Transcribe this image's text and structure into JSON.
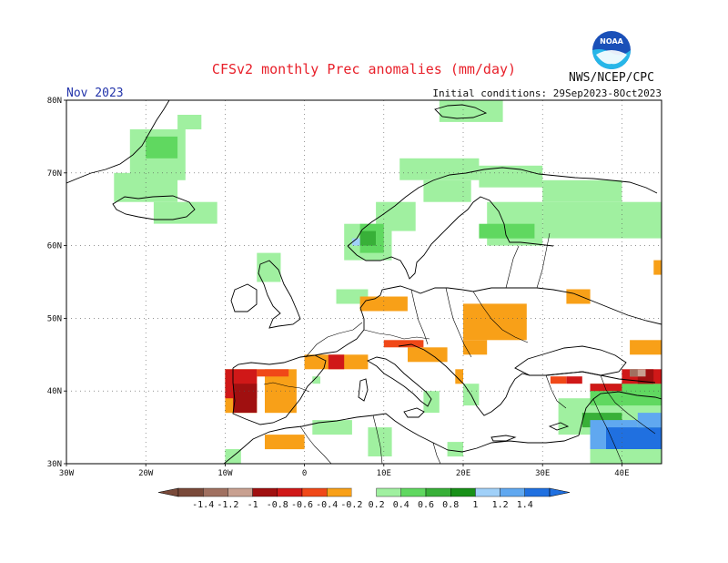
{
  "header": {
    "title": "CFSv2 monthly Prec anomalies (mm/day)",
    "agency": "NWS/NCEP/CPC",
    "logo_text": "NOAA",
    "month": "Nov 2023",
    "initial_conditions": "Initial conditions: 29Sep2023-8Oct2023"
  },
  "axes": {
    "lon_labels": [
      "30W",
      "20W",
      "10W",
      "0",
      "10E",
      "20E",
      "30E",
      "40E"
    ],
    "lat_labels": [
      "80N",
      "70N",
      "60N",
      "50N",
      "40N",
      "30N"
    ],
    "lon_range": [
      -30,
      45
    ],
    "lat_range": [
      30,
      80
    ],
    "grid": "dotted"
  },
  "colorbar": {
    "tick_labels": [
      "-1.4",
      "-1.2",
      "-1",
      "-0.8",
      "-0.6",
      "-0.4",
      "-0.2",
      "0.2",
      "0.4",
      "0.6",
      "0.8",
      "1",
      "1.2",
      "1.4"
    ],
    "colors": [
      "#7a4a3a",
      "#a07060",
      "#c8a090",
      "#a01010",
      "#d01818",
      "#f04818",
      "#f8a018",
      "#ffffff",
      "#a0f0a0",
      "#60d860",
      "#38b038",
      "#189018",
      "#a0d0f8",
      "#60a8f0",
      "#2070e0"
    ],
    "extend": "both"
  },
  "colors": {
    "title": "#e8202a",
    "month": "#2233aa",
    "coast": "#000000",
    "logo_blue": "#1a50b8"
  },
  "chart_data": {
    "type": "heatmap",
    "title": "CFSv2 monthly Prec anomalies (mm/day)",
    "units": "mm/day",
    "cell_size_deg": 1,
    "xlabel": "",
    "ylabel": "",
    "xlim": [
      -30,
      45
    ],
    "ylim": [
      30,
      80
    ],
    "regions": [
      {
        "anomaly": 0.3,
        "lon": [
          -22,
          -15
        ],
        "lat": [
          69,
          76
        ]
      },
      {
        "anomaly": 0.3,
        "lon": [
          -24,
          -16
        ],
        "lat": [
          66,
          70
        ]
      },
      {
        "anomaly": 0.3,
        "lon": [
          -16,
          -13
        ],
        "lat": [
          76,
          78
        ]
      },
      {
        "anomaly": 0.3,
        "lon": [
          -19,
          -11
        ],
        "lat": [
          63,
          66
        ]
      },
      {
        "anomaly": 0.3,
        "lon": [
          17,
          25
        ],
        "lat": [
          77,
          80
        ]
      },
      {
        "anomaly": 0.3,
        "lon": [
          12,
          22
        ],
        "lat": [
          69,
          72
        ]
      },
      {
        "anomaly": 0.3,
        "lon": [
          22,
          30
        ],
        "lat": [
          68,
          71
        ]
      },
      {
        "anomaly": 0.3,
        "lon": [
          15,
          21
        ],
        "lat": [
          66,
          69
        ]
      },
      {
        "anomaly": 0.3,
        "lon": [
          9,
          14
        ],
        "lat": [
          62,
          66
        ]
      },
      {
        "anomaly": 0.3,
        "lon": [
          23,
          30
        ],
        "lat": [
          60,
          66
        ]
      },
      {
        "anomaly": 0.3,
        "lon": [
          30,
          45
        ],
        "lat": [
          61,
          66
        ]
      },
      {
        "anomaly": 0.3,
        "lon": [
          30,
          40
        ],
        "lat": [
          66,
          69
        ]
      },
      {
        "anomaly": 0.3,
        "lon": [
          5,
          11
        ],
        "lat": [
          58,
          63
        ]
      },
      {
        "anomaly": 0.3,
        "lon": [
          -6,
          -3
        ],
        "lat": [
          55,
          59
        ]
      },
      {
        "anomaly": 0.3,
        "lon": [
          4,
          8
        ],
        "lat": [
          52,
          54
        ]
      },
      {
        "anomaly": 0.3,
        "lon": [
          8,
          11
        ],
        "lat": [
          31,
          35
        ]
      },
      {
        "anomaly": 0.3,
        "lon": [
          1,
          6
        ],
        "lat": [
          34,
          36
        ]
      },
      {
        "anomaly": 0.3,
        "lon": [
          15,
          17
        ],
        "lat": [
          37,
          40
        ]
      },
      {
        "anomaly": 0.3,
        "lon": [
          20,
          22
        ],
        "lat": [
          38,
          41
        ]
      },
      {
        "anomaly": 0.3,
        "lon": [
          18,
          20
        ],
        "lat": [
          31,
          33
        ]
      },
      {
        "anomaly": 0.3,
        "lon": [
          32,
          45
        ],
        "lat": [
          34,
          39
        ]
      },
      {
        "anomaly": 0.3,
        "lon": [
          36,
          45
        ],
        "lat": [
          30,
          34
        ]
      },
      {
        "anomaly": 0.3,
        "lon": [
          -10,
          -8
        ],
        "lat": [
          30,
          32
        ]
      },
      {
        "anomaly": 0.3,
        "lon": [
          1,
          2
        ],
        "lat": [
          41,
          42
        ]
      },
      {
        "anomaly": 0.5,
        "lon": [
          36,
          45
        ],
        "lat": [
          38,
          41
        ]
      },
      {
        "anomaly": 0.5,
        "lon": [
          7,
          10
        ],
        "lat": [
          59,
          63
        ]
      },
      {
        "anomaly": 0.5,
        "lon": [
          22,
          29
        ],
        "lat": [
          61,
          63
        ]
      },
      {
        "anomaly": 0.5,
        "lon": [
          -20,
          -16
        ],
        "lat": [
          72,
          75
        ]
      },
      {
        "anomaly": 0.7,
        "lon": [
          7,
          9
        ],
        "lat": [
          60,
          62
        ]
      },
      {
        "anomaly": 0.7,
        "lon": [
          35,
          40
        ],
        "lat": [
          35,
          37
        ]
      },
      {
        "anomaly": 1.1,
        "lon": [
          6,
          7
        ],
        "lat": [
          60,
          61
        ]
      },
      {
        "anomaly": 1.3,
        "lon": [
          36,
          42
        ],
        "lat": [
          32,
          36
        ]
      },
      {
        "anomaly": 1.5,
        "lon": [
          38,
          45
        ],
        "lat": [
          32,
          35
        ]
      },
      {
        "anomaly": 1.3,
        "lon": [
          42,
          45
        ],
        "lat": [
          35,
          37
        ]
      },
      {
        "anomaly": -0.3,
        "lon": [
          -5,
          -1
        ],
        "lat": [
          37,
          43
        ]
      },
      {
        "anomaly": -0.3,
        "lon": [
          -10,
          -6
        ],
        "lat": [
          37,
          43
        ]
      },
      {
        "anomaly": -0.3,
        "lon": [
          -5,
          0
        ],
        "lat": [
          32,
          34
        ]
      },
      {
        "anomaly": -0.3,
        "lon": [
          0,
          8
        ],
        "lat": [
          43,
          45
        ]
      },
      {
        "anomaly": -0.3,
        "lon": [
          7,
          13
        ],
        "lat": [
          51,
          53
        ]
      },
      {
        "anomaly": -0.3,
        "lon": [
          20,
          28
        ],
        "lat": [
          47,
          52
        ]
      },
      {
        "anomaly": -0.3,
        "lon": [
          20,
          23
        ],
        "lat": [
          45,
          47
        ]
      },
      {
        "anomaly": -0.3,
        "lon": [
          13,
          18
        ],
        "lat": [
          44,
          46
        ]
      },
      {
        "anomaly": -0.3,
        "lon": [
          19,
          20
        ],
        "lat": [
          41,
          43
        ]
      },
      {
        "anomaly": -0.3,
        "lon": [
          33,
          36
        ],
        "lat": [
          52,
          54
        ]
      },
      {
        "anomaly": -0.3,
        "lon": [
          44,
          45
        ],
        "lat": [
          56,
          58
        ]
      },
      {
        "anomaly": -0.3,
        "lon": [
          41,
          45
        ],
        "lat": [
          45,
          47
        ]
      },
      {
        "anomaly": -0.5,
        "lon": [
          -6,
          -2
        ],
        "lat": [
          42,
          43
        ]
      },
      {
        "anomaly": -0.5,
        "lon": [
          10,
          15
        ],
        "lat": [
          46,
          47
        ]
      },
      {
        "anomaly": -0.5,
        "lon": [
          31,
          33
        ],
        "lat": [
          41,
          42
        ]
      },
      {
        "anomaly": -0.7,
        "lon": [
          -10,
          -6
        ],
        "lat": [
          39,
          43
        ]
      },
      {
        "anomaly": -0.7,
        "lon": [
          3,
          5
        ],
        "lat": [
          43,
          45
        ]
      },
      {
        "anomaly": -0.7,
        "lon": [
          40,
          45
        ],
        "lat": [
          41,
          43
        ]
      },
      {
        "anomaly": -0.7,
        "lon": [
          36,
          40
        ],
        "lat": [
          40,
          41
        ]
      },
      {
        "anomaly": -0.7,
        "lon": [
          33,
          35
        ],
        "lat": [
          41,
          42
        ]
      },
      {
        "anomaly": -0.9,
        "lon": [
          -9,
          -6
        ],
        "lat": [
          37,
          41
        ]
      },
      {
        "anomaly": -0.9,
        "lon": [
          42,
          44
        ],
        "lat": [
          41,
          43
        ]
      },
      {
        "anomaly": -1.1,
        "lon": [
          41,
          43
        ],
        "lat": [
          42,
          43
        ]
      },
      {
        "anomaly": -1.3,
        "lon": [
          41,
          42
        ],
        "lat": [
          42,
          43
        ]
      }
    ]
  }
}
